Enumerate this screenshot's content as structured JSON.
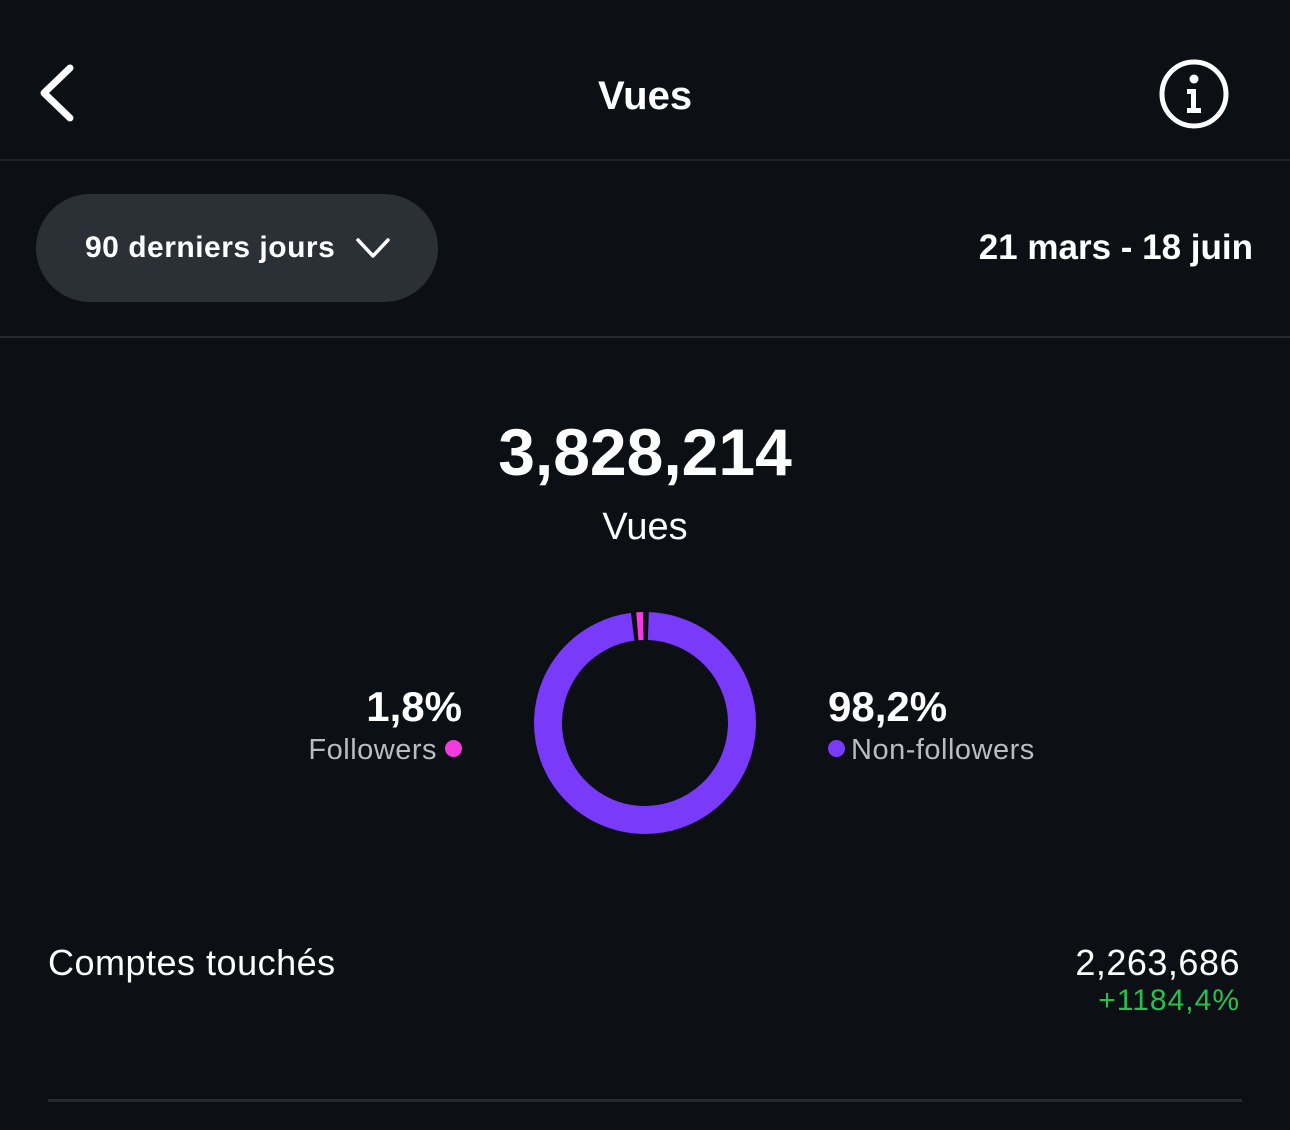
{
  "header": {
    "title": "Vues",
    "back_icon": "chevron-left-icon",
    "info_icon": "info-icon"
  },
  "filter": {
    "period_label": "90 derniers jours",
    "period_icon": "chevron-down-icon",
    "date_range": "21 mars - 18 juin"
  },
  "summary": {
    "total_value": "3,828,214",
    "total_label": "Vues"
  },
  "breakdown": {
    "followers": {
      "percent_label": "1,8%",
      "label": "Followers",
      "value": 1.8,
      "color": "#f23ce0"
    },
    "non_followers": {
      "percent_label": "98,2%",
      "label": "Non-followers",
      "value": 98.2,
      "color": "#7a3afa"
    }
  },
  "metrics": {
    "reached_label": "Comptes touchés",
    "reached_value": "2,263,686",
    "reached_delta": "+1184,4%",
    "delta_color": "#27c04f"
  }
}
